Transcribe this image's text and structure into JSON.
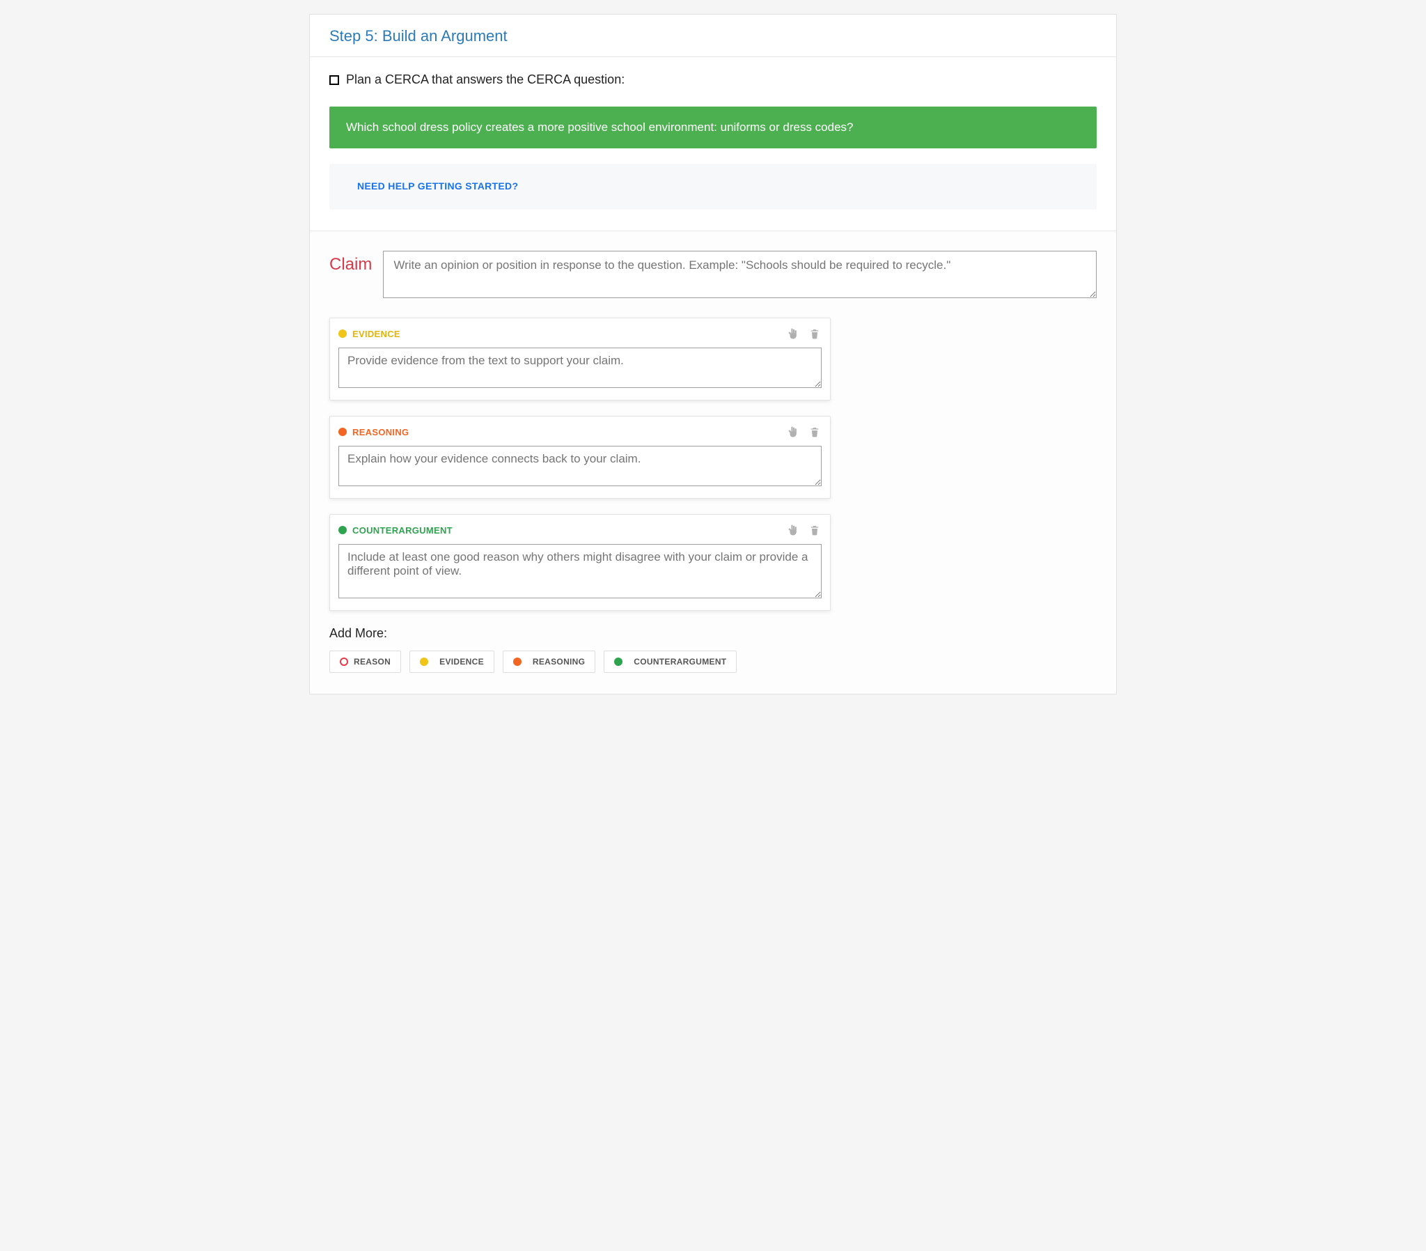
{
  "header": {
    "title": "Step 5: Build an Argument"
  },
  "plan": {
    "instruction": "Plan a CERCA that answers the CERCA question:",
    "question": "Which school dress policy creates a more positive school environment: uniforms or dress codes?",
    "help_link": "NEED HELP GETTING STARTED?"
  },
  "claim": {
    "label": "Claim",
    "placeholder": "Write an opinion or position in response to the question. Example: \"Schools should be required to recycle.\"",
    "label_color": "#d73a49"
  },
  "cards": [
    {
      "key": "evidence",
      "label": "EVIDENCE",
      "dot_color": "#f0c419",
      "label_color": "#e3b409",
      "placeholder": "Provide evidence from the text to support your claim."
    },
    {
      "key": "reasoning",
      "label": "REASONING",
      "dot_color": "#f26522",
      "label_color": "#f26522",
      "placeholder": "Explain how your evidence connects back to your claim."
    },
    {
      "key": "counterargument",
      "label": "COUNTERARGUMENT",
      "dot_color": "#2ea44f",
      "label_color": "#2ea44f",
      "placeholder": "Include at least one good reason why others might disagree with your claim or provide a different point of view."
    }
  ],
  "add_more": {
    "label": "Add More:",
    "buttons": [
      {
        "key": "reason",
        "label": "REASON",
        "style": "ring",
        "color": "#e63946"
      },
      {
        "key": "evidence",
        "label": "EVIDENCE",
        "style": "dot",
        "color": "#f0c419"
      },
      {
        "key": "reasoning",
        "label": "REASONING",
        "style": "dot",
        "color": "#f26522"
      },
      {
        "key": "counterargument",
        "label": "COUNTERARGUMENT",
        "style": "dot",
        "color": "#2ea44f"
      }
    ]
  },
  "colors": {
    "banner_bg": "#4caf50",
    "help_link": "#1a73e8",
    "step_title": "#2b7bb9",
    "icon_disabled": "#b0b0b0"
  }
}
